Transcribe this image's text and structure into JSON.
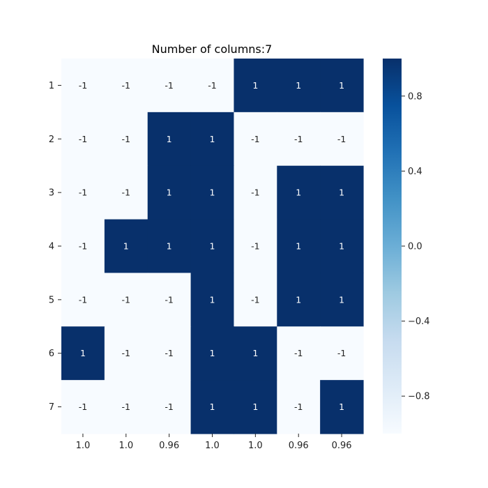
{
  "chart_data": {
    "type": "heatmap",
    "title": "Number of columns:7",
    "xlabel": "",
    "ylabel": "",
    "row_labels": [
      "1",
      "2",
      "3",
      "4",
      "5",
      "6",
      "7"
    ],
    "col_labels": [
      "1.0",
      "1.0",
      "0.96",
      "1.0",
      "1.0",
      "0.96",
      "0.96"
    ],
    "values": [
      [
        -1,
        -1,
        -1,
        -1,
        1,
        1,
        1
      ],
      [
        -1,
        -1,
        1,
        1,
        -1,
        -1,
        -1
      ],
      [
        -1,
        -1,
        1,
        1,
        -1,
        1,
        1
      ],
      [
        -1,
        1,
        1,
        1,
        -1,
        1,
        1
      ],
      [
        -1,
        -1,
        -1,
        1,
        -1,
        1,
        1
      ],
      [
        1,
        -1,
        -1,
        1,
        1,
        -1,
        -1
      ],
      [
        -1,
        -1,
        -1,
        1,
        1,
        -1,
        1
      ]
    ],
    "vmin": -1,
    "vmax": 1,
    "colormap": "Blues",
    "low_color": "#f7fbff",
    "high_color": "#08306b",
    "annotations": true,
    "colorbar": {
      "ticks": [
        0.8,
        0.4,
        0.0,
        -0.4,
        -0.8
      ],
      "tick_labels": [
        "0.8",
        "0.4",
        "0.0",
        "−0.4",
        "−0.8"
      ]
    }
  }
}
